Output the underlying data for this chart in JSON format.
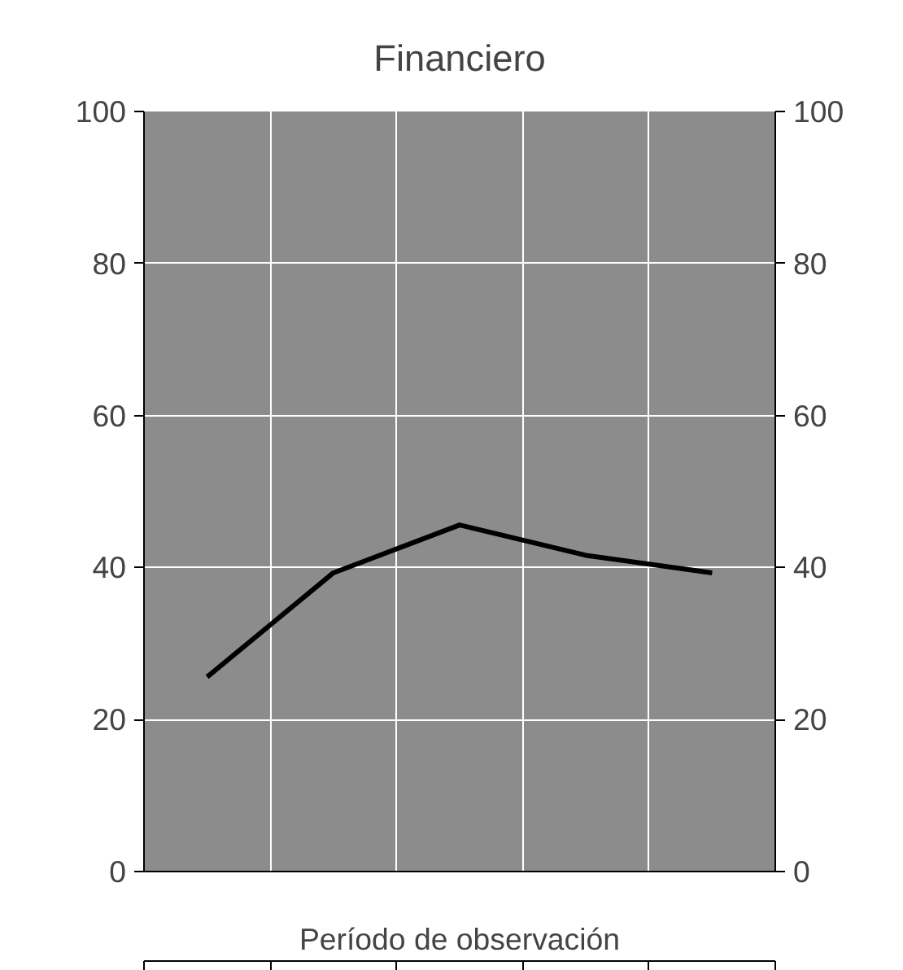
{
  "chart_data": {
    "type": "line",
    "title": "Financiero",
    "xlabel": "Período de observación",
    "categories": [
      null,
      null,
      null,
      null,
      null
    ],
    "series": [
      {
        "color": "#000000",
        "values": [
          25.6,
          39.3,
          45.6,
          41.6,
          39.3
        ]
      }
    ],
    "ylim": [
      0,
      100
    ],
    "yticks": [
      0,
      20,
      40,
      60,
      80,
      100
    ],
    "y2lim": [
      0,
      100
    ],
    "y2ticks": [
      0,
      20,
      40,
      60,
      80,
      100
    ],
    "grid": true,
    "marker": "none",
    "line_style": "solid"
  }
}
